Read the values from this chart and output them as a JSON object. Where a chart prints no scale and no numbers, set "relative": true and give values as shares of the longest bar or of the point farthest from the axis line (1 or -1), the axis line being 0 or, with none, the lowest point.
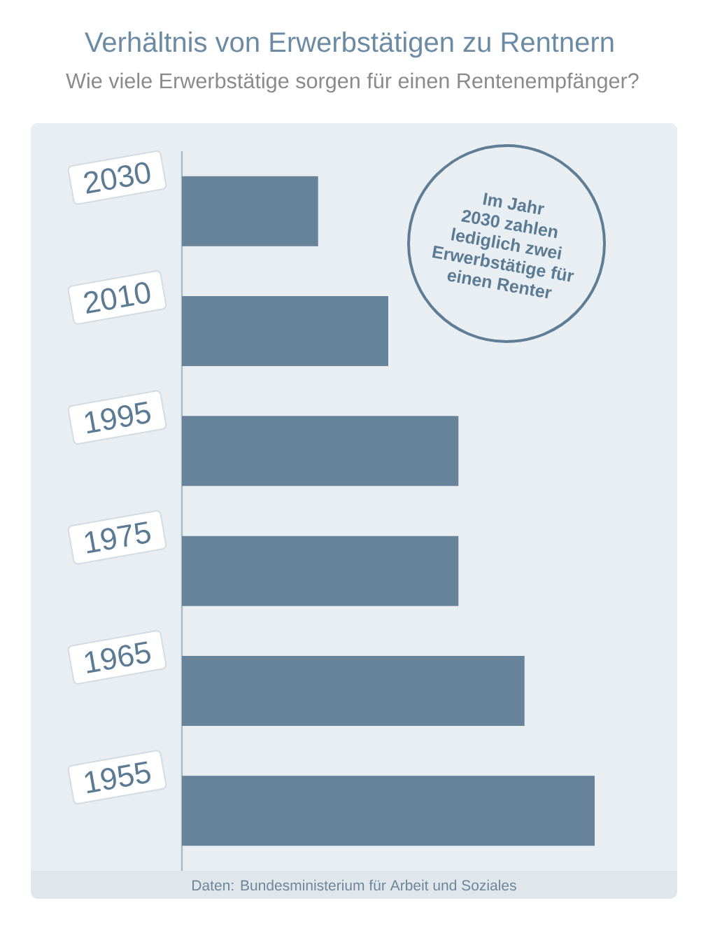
{
  "chart_data": {
    "type": "bar",
    "orientation": "horizontal",
    "relative": true,
    "title": "Verhältnis von Erwerbstätigen zu Rentnern",
    "subtitle": "Wie viele Erwerbstätige sorgen für einen Rentenempfänger?",
    "categories": [
      "2030",
      "2010",
      "1995",
      "1975",
      "1965",
      "1955"
    ],
    "values": [
      0.33,
      0.5,
      0.67,
      0.67,
      0.83,
      1
    ],
    "color": "#67839a",
    "annotations": [
      "Im Jahr 2030 zahlen lediglich zwei Erwerbstätige für einen Renter",
      "Daten: Bundesministerium für Arbeit und Soziales"
    ]
  }
}
